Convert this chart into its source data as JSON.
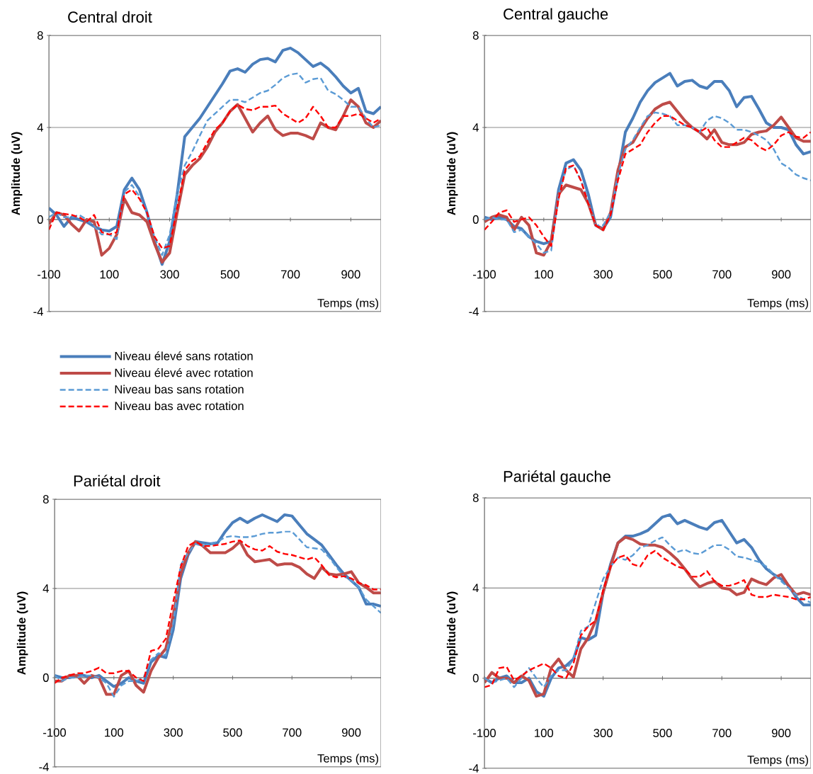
{
  "chart_data": [
    {
      "type": "line",
      "title": "Central droit",
      "xlabel": "Temps (ms)",
      "ylabel": "Amplitude (uV)",
      "xlim": [
        -100,
        1000
      ],
      "ylim": [
        -4,
        8
      ],
      "xticks": [
        -100,
        100,
        300,
        500,
        700,
        900
      ],
      "yticks": [
        -4,
        0,
        4,
        8
      ],
      "grid": "y",
      "legend": "bottom left",
      "x": [
        -100,
        -75,
        -50,
        -25,
        0,
        25,
        50,
        75,
        100,
        125,
        150,
        175,
        200,
        225,
        250,
        275,
        300,
        325,
        350,
        375,
        400,
        425,
        450,
        475,
        500,
        525,
        550,
        575,
        600,
        625,
        650,
        675,
        700,
        725,
        750,
        775,
        800,
        825,
        850,
        875,
        900,
        925,
        950,
        975,
        1000
      ],
      "series": [
        {
          "name": "Niveau élevé sans rotation",
          "color": "#4a7ebb",
          "line_style": "solid",
          "values": [
            0.5,
            0.2,
            -0.3,
            0.1,
            0,
            -0.1,
            -0.3,
            -0.45,
            -0.5,
            -0.3,
            1.3,
            1.8,
            1.3,
            0.3,
            -0.95,
            -1.95,
            -0.95,
            1.1,
            3.6,
            4.0,
            4.4,
            4.9,
            5.4,
            5.9,
            6.45,
            6.55,
            6.4,
            6.75,
            6.95,
            7.0,
            6.85,
            7.35,
            7.45,
            7.25,
            6.95,
            6.65,
            6.8,
            6.55,
            6.2,
            5.8,
            5.5,
            5.7,
            4.7,
            4.6,
            4.9
          ]
        },
        {
          "name": "Niveau élevé avec rotation",
          "color": "#be4b48",
          "line_style": "solid",
          "values": [
            -0.2,
            0.3,
            0.2,
            -0.2,
            -0.5,
            0,
            -0.1,
            -1.55,
            -1.25,
            -0.65,
            0.9,
            0.3,
            0.2,
            -0.1,
            -1.05,
            -1.85,
            -1.45,
            0.3,
            1.95,
            2.35,
            2.65,
            3.15,
            3.8,
            4.2,
            4.7,
            5.0,
            4.4,
            3.8,
            4.2,
            4.5,
            3.9,
            3.65,
            3.75,
            3.75,
            3.65,
            3.5,
            4.2,
            4.0,
            3.9,
            4.5,
            5.2,
            4.9,
            4.2,
            4.0,
            4.3
          ]
        },
        {
          "name": "Niveau bas sans rotation",
          "color": "#5b9bd5",
          "line_style": "dashed",
          "values": [
            0.1,
            0.3,
            0.1,
            0.1,
            0.2,
            0,
            -0.3,
            -0.65,
            -0.65,
            -0.85,
            1.2,
            1.5,
            1.0,
            0.3,
            -0.75,
            -1.55,
            -0.65,
            1.1,
            2.35,
            2.95,
            3.65,
            4.3,
            4.6,
            4.9,
            5.2,
            5.2,
            5.1,
            5.3,
            5.5,
            5.6,
            5.85,
            6.15,
            6.3,
            6.35,
            5.95,
            6.1,
            6.15,
            5.6,
            5.45,
            5.2,
            4.9,
            4.9,
            4.4,
            4.0,
            4.1
          ]
        },
        {
          "name": "Niveau bas avec rotation",
          "color": "#ff0000",
          "line_style": "dashed",
          "values": [
            -0.45,
            0.3,
            0.25,
            0.2,
            0.1,
            -0.1,
            0.2,
            -0.55,
            -0.65,
            -0.55,
            1.1,
            1.3,
            0.9,
            0.3,
            -0.75,
            -1.25,
            -1.15,
            0.5,
            2.15,
            2.55,
            2.75,
            3.35,
            3.9,
            4.2,
            4.7,
            5.0,
            4.8,
            4.75,
            4.9,
            4.9,
            4.95,
            4.6,
            4.4,
            4.2,
            4.4,
            4.9,
            4.5,
            4.0,
            4.0,
            4.5,
            4.5,
            4.6,
            4.4,
            4.2,
            4.4
          ]
        }
      ]
    },
    {
      "type": "line",
      "title": "Central gauche",
      "xlabel": "Temps (ms)",
      "ylabel": "Amplitude (uV)",
      "xlim": [
        -100,
        1000
      ],
      "ylim": [
        -4,
        8
      ],
      "xticks": [
        -100,
        100,
        300,
        500,
        700,
        900
      ],
      "yticks": [
        -4,
        0,
        4,
        8
      ],
      "grid": "y",
      "x": [
        -100,
        -75,
        -50,
        -25,
        0,
        25,
        50,
        75,
        100,
        125,
        150,
        175,
        200,
        225,
        250,
        275,
        300,
        325,
        350,
        375,
        400,
        425,
        450,
        475,
        500,
        525,
        550,
        575,
        600,
        625,
        650,
        675,
        700,
        725,
        750,
        775,
        800,
        825,
        850,
        875,
        900,
        925,
        950,
        975,
        1000
      ],
      "series": [
        {
          "color": "#4a7ebb",
          "line_style": "solid",
          "values": [
            0.1,
            0,
            0.1,
            0,
            -0.3,
            -0.4,
            -0.75,
            -0.95,
            -1.05,
            -0.95,
            1.3,
            2.45,
            2.6,
            2.15,
            1.1,
            -0.25,
            -0.4,
            0.1,
            1.95,
            3.8,
            4.4,
            5.1,
            5.6,
            5.95,
            6.15,
            6.35,
            5.8,
            6.0,
            6.05,
            5.8,
            5.7,
            6.0,
            6.0,
            5.6,
            4.9,
            5.3,
            5.35,
            4.8,
            4.2,
            4.0,
            4.0,
            3.9,
            3.25,
            2.85,
            2.95
          ]
        },
        {
          "color": "#be4b48",
          "line_style": "solid",
          "values": [
            -0.1,
            0.1,
            0.2,
            0.1,
            -0.45,
            0.1,
            -0.25,
            -1.45,
            -1.55,
            -0.95,
            1.1,
            1.5,
            1.4,
            1.3,
            0.7,
            -0.25,
            -0.45,
            0.3,
            2.15,
            3.15,
            3.35,
            3.9,
            4.4,
            4.8,
            5.0,
            5.1,
            4.7,
            4.3,
            4.0,
            3.8,
            3.5,
            3.9,
            3.35,
            3.25,
            3.25,
            3.35,
            3.7,
            3.8,
            3.85,
            4.1,
            4.45,
            4.0,
            3.55,
            3.4,
            3.4
          ]
        },
        {
          "color": "#5b9bd5",
          "line_style": "dashed",
          "values": [
            0,
            0.1,
            0,
            0,
            -0.55,
            -0.45,
            -0.75,
            -1.05,
            -1.45,
            -1.35,
            1.1,
            2.15,
            2.35,
            1.7,
            0.8,
            -0.25,
            -0.25,
            0.3,
            1.95,
            3.05,
            3.45,
            4.0,
            4.5,
            4.65,
            4.6,
            4.5,
            4.1,
            4.1,
            4.0,
            3.8,
            4.3,
            4.5,
            4.4,
            4.2,
            3.9,
            3.9,
            3.8,
            3.65,
            3.45,
            3.05,
            2.45,
            2.25,
            1.95,
            1.8,
            1.7
          ]
        },
        {
          "color": "#ff0000",
          "line_style": "dashed",
          "values": [
            -0.45,
            -0.1,
            0.3,
            0.4,
            -0.1,
            0,
            0.1,
            -0.25,
            -0.75,
            -1.15,
            0.9,
            2.25,
            2.35,
            1.7,
            0.7,
            -0.25,
            -0.45,
            0.2,
            1.7,
            2.85,
            3.05,
            3.25,
            3.8,
            4.2,
            4.5,
            4.5,
            4.3,
            4.1,
            4.0,
            3.8,
            4.0,
            3.45,
            3.15,
            3.15,
            3.35,
            3.55,
            3.45,
            3.15,
            3.0,
            3.25,
            3.65,
            3.8,
            3.6,
            3.55,
            3.8
          ]
        }
      ]
    },
    {
      "type": "line",
      "title": "Pariétal droit",
      "xlabel": "Temps (ms)",
      "ylabel": "Amplitude (uV)",
      "xlim": [
        -100,
        1000
      ],
      "ylim": [
        -4,
        8
      ],
      "xticks": [
        -100,
        100,
        300,
        500,
        700,
        900
      ],
      "yticks": [
        -4,
        0,
        4,
        8
      ],
      "grid": "y",
      "x": [
        -100,
        -75,
        -50,
        -25,
        0,
        25,
        50,
        75,
        100,
        125,
        150,
        175,
        200,
        225,
        250,
        275,
        300,
        325,
        350,
        375,
        400,
        425,
        450,
        475,
        500,
        525,
        550,
        575,
        600,
        625,
        650,
        675,
        700,
        725,
        750,
        775,
        800,
        825,
        850,
        875,
        900,
        925,
        950,
        975,
        1000
      ],
      "series": [
        {
          "color": "#4a7ebb",
          "line_style": "solid",
          "values": [
            0.1,
            0,
            0,
            0.1,
            0.1,
            0,
            0.1,
            -0.15,
            -0.4,
            -0.25,
            0,
            -0.15,
            -0.25,
            0.7,
            1.0,
            0.9,
            2.15,
            4.45,
            5.5,
            6.1,
            6.05,
            6.0,
            6.05,
            6.55,
            6.95,
            7.15,
            6.95,
            7.15,
            7.3,
            7.15,
            7.0,
            7.3,
            7.25,
            6.85,
            6.45,
            6.2,
            5.95,
            5.5,
            5.05,
            4.65,
            4.35,
            4.05,
            3.3,
            3.3,
            3.2
          ]
        },
        {
          "color": "#be4b48",
          "line_style": "solid",
          "values": [
            -0.15,
            -0.15,
            0.1,
            0.1,
            -0.25,
            0.1,
            0,
            -0.75,
            -0.75,
            0.1,
            0.3,
            -0.35,
            -0.65,
            0.3,
            0.9,
            1.3,
            2.8,
            4.65,
            5.6,
            6.1,
            5.9,
            5.6,
            5.6,
            5.6,
            5.8,
            6.1,
            5.5,
            5.2,
            5.25,
            5.3,
            5.05,
            5.1,
            5.1,
            4.95,
            4.65,
            4.45,
            4.95,
            4.65,
            4.6,
            4.65,
            4.75,
            4.25,
            4.05,
            3.8,
            3.8
          ]
        },
        {
          "color": "#5b9bd5",
          "line_style": "dashed",
          "values": [
            0.1,
            -0.15,
            0,
            0,
            0.1,
            0.1,
            0,
            -0.25,
            -0.85,
            -0.35,
            -0.15,
            -0.15,
            0,
            0.8,
            1.1,
            1.0,
            2.45,
            5.05,
            5.6,
            6.0,
            5.9,
            6.0,
            6.1,
            6.3,
            6.35,
            6.3,
            6.3,
            6.35,
            6.45,
            6.5,
            6.5,
            6.55,
            6.55,
            6.2,
            5.85,
            5.8,
            5.75,
            5.4,
            4.95,
            4.55,
            4.35,
            4.05,
            3.5,
            3.2,
            2.9
          ]
        },
        {
          "color": "#ff0000",
          "line_style": "dashed",
          "values": [
            -0.25,
            0,
            0.1,
            0.2,
            0.2,
            0.3,
            0.45,
            0.2,
            0.2,
            0.3,
            0.3,
            0,
            -0.15,
            1.2,
            1.3,
            1.75,
            3.4,
            4.95,
            5.9,
            6.1,
            5.9,
            5.9,
            5.95,
            6.0,
            6.1,
            6.15,
            5.9,
            5.75,
            5.7,
            5.9,
            5.65,
            5.55,
            5.5,
            5.4,
            5.3,
            5.4,
            5.05,
            4.6,
            4.5,
            4.55,
            4.45,
            4.25,
            4.15,
            3.95,
            3.95
          ]
        }
      ]
    },
    {
      "type": "line",
      "title": "Pariétal gauche",
      "xlabel": "Temps (ms)",
      "ylabel": "Amplitude (uV)",
      "xlim": [
        -100,
        1000
      ],
      "ylim": [
        -4,
        8
      ],
      "xticks": [
        -100,
        100,
        300,
        500,
        700,
        900
      ],
      "yticks": [
        -4,
        0,
        4,
        8
      ],
      "grid": "y",
      "x": [
        -100,
        -75,
        -50,
        -25,
        0,
        25,
        50,
        75,
        100,
        125,
        150,
        175,
        200,
        225,
        250,
        275,
        300,
        325,
        350,
        375,
        400,
        425,
        450,
        475,
        500,
        525,
        550,
        575,
        600,
        625,
        650,
        675,
        700,
        725,
        750,
        775,
        800,
        825,
        850,
        875,
        900,
        925,
        950,
        975,
        1000
      ],
      "series": [
        {
          "color": "#4a7ebb",
          "line_style": "solid",
          "values": [
            0,
            -0.2,
            0,
            0.1,
            -0.2,
            -0.2,
            0,
            -0.6,
            -0.8,
            0,
            0.45,
            0.55,
            0.85,
            1.8,
            1.7,
            1.9,
            3.8,
            5.05,
            6.0,
            6.3,
            6.3,
            6.4,
            6.55,
            6.85,
            7.15,
            7.25,
            6.85,
            7.0,
            6.85,
            6.7,
            6.6,
            6.9,
            7.0,
            6.5,
            6.0,
            6.15,
            5.8,
            5.25,
            4.85,
            4.6,
            4.4,
            4.1,
            3.6,
            3.25,
            3.25
          ]
        },
        {
          "color": "#be4b48",
          "line_style": "solid",
          "values": [
            -0.2,
            0.25,
            0,
            0,
            -0.2,
            0.1,
            -0.1,
            -0.8,
            -0.7,
            0.45,
            0.85,
            0.35,
            0.05,
            1.3,
            1.8,
            2.55,
            3.8,
            4.95,
            6.0,
            6.25,
            6.15,
            5.95,
            5.9,
            5.9,
            5.8,
            5.55,
            5.25,
            4.85,
            4.4,
            4.05,
            4.2,
            4.3,
            4.0,
            3.95,
            3.7,
            3.8,
            4.4,
            4.25,
            4.15,
            4.45,
            4.6,
            4.1,
            3.7,
            3.8,
            3.7
          ]
        },
        {
          "color": "#5b9bd5",
          "line_style": "dashed",
          "values": [
            0,
            -0.2,
            -0.1,
            0,
            -0.4,
            0,
            0.45,
            0,
            -0.4,
            0.1,
            0.35,
            0.35,
            0.85,
            2.1,
            2.3,
            3.35,
            4.4,
            4.95,
            5.35,
            5.25,
            5.45,
            5.8,
            5.9,
            6.1,
            6.25,
            5.9,
            5.6,
            5.7,
            5.55,
            5.5,
            5.7,
            5.9,
            5.9,
            5.7,
            5.4,
            5.35,
            5.25,
            5.15,
            4.95,
            4.6,
            4.3,
            4.0,
            3.7,
            3.5,
            3.35
          ]
        },
        {
          "color": "#ff0000",
          "line_style": "dashed",
          "values": [
            -0.4,
            -0.3,
            0.45,
            0.5,
            -0.1,
            0.1,
            0.35,
            0.5,
            0.65,
            0.45,
            0.1,
            0,
            0.65,
            1.9,
            2.3,
            2.55,
            3.9,
            4.95,
            5.35,
            5.45,
            5.05,
            4.95,
            5.45,
            5.65,
            5.35,
            5.15,
            4.95,
            4.85,
            4.5,
            4.5,
            4.75,
            4.3,
            4.1,
            4.1,
            4.2,
            4.35,
            3.7,
            3.6,
            3.6,
            3.7,
            3.65,
            3.6,
            3.5,
            3.5,
            3.6
          ]
        }
      ]
    }
  ]
}
